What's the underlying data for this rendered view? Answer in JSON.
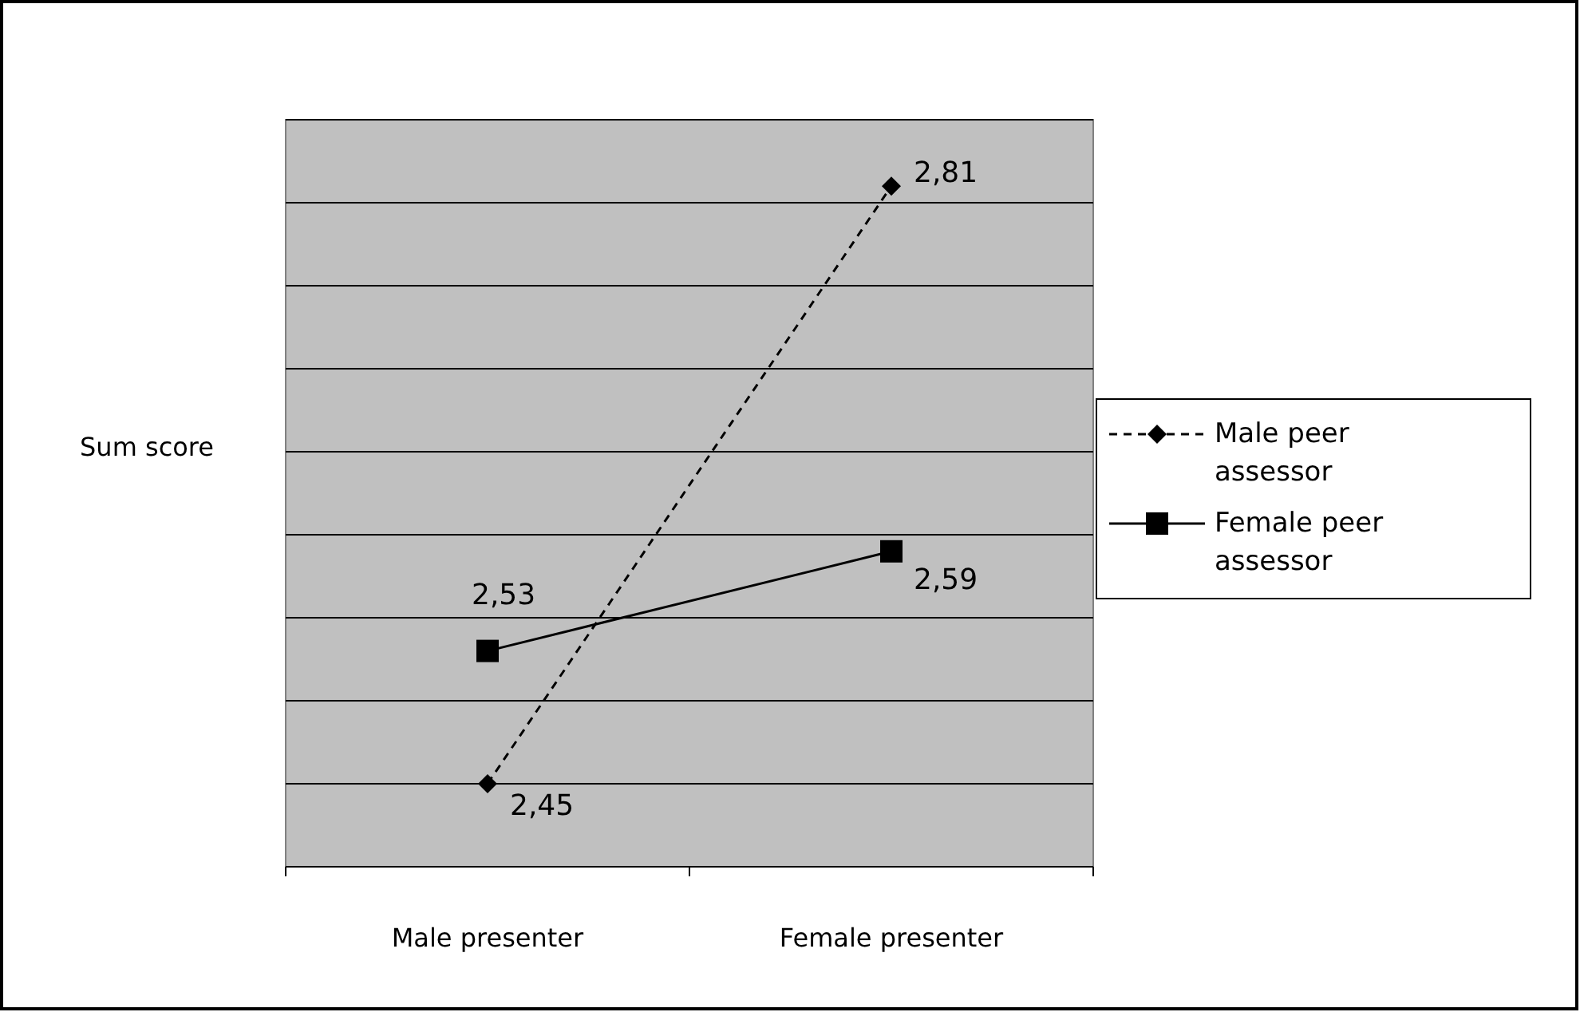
{
  "chart_data": {
    "type": "line",
    "ylabel": "Sum score",
    "categories": [
      "Male presenter",
      "Female presenter"
    ],
    "series": [
      {
        "name": "Male peer assessor",
        "color": "#000000",
        "values": [
          2.45,
          2.81
        ],
        "value_labels": [
          "2,45",
          "2,81"
        ],
        "marker": "diamond",
        "line_style": "dashed"
      },
      {
        "name": "Female peer assessor",
        "color": "#000000",
        "values": [
          2.53,
          2.59
        ],
        "value_labels": [
          "2,53",
          "2,59"
        ],
        "marker": "square",
        "line_style": "solid"
      }
    ],
    "ylim": [
      2.4,
      2.85
    ],
    "yticks": [
      {
        "value": 2.4,
        "label": null
      },
      {
        "value": 2.45,
        "label": null
      },
      {
        "value": 2.5,
        "label": null
      },
      {
        "value": 2.55,
        "label": null
      },
      {
        "value": 2.6,
        "label": null
      },
      {
        "value": 2.65,
        "label": null
      },
      {
        "value": 2.7,
        "label": null
      },
      {
        "value": 2.75,
        "label": null
      },
      {
        "value": 2.8,
        "label": null
      },
      {
        "value": 2.85,
        "label": null
      }
    ],
    "tick_labels": "x",
    "grid": "y",
    "legend": "right"
  }
}
